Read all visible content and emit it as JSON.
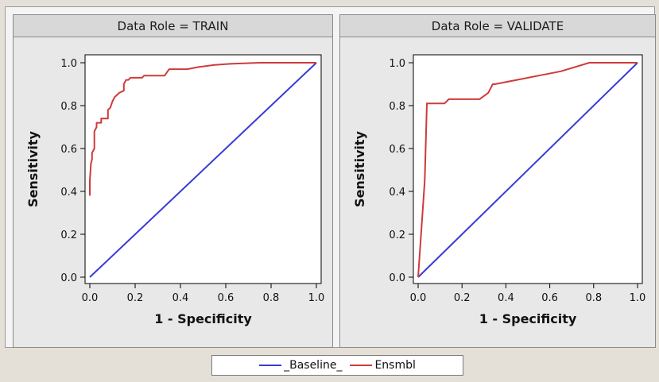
{
  "chart_data": [
    {
      "type": "line",
      "title": "Data Role = TRAIN",
      "xlabel": "1 - Specificity",
      "ylabel": "Sensitivity",
      "xlim": [
        0,
        1
      ],
      "ylim": [
        0,
        1
      ],
      "xticks": [
        "0.0",
        "0.2",
        "0.4",
        "0.6",
        "0.8",
        "1.0"
      ],
      "yticks": [
        "0.0",
        "0.2",
        "0.4",
        "0.6",
        "0.8",
        "1.0"
      ],
      "grid": false,
      "series": [
        {
          "name": "_Baseline_",
          "color": "#3a3ad6",
          "x": [
            0,
            1
          ],
          "y": [
            0,
            1
          ]
        },
        {
          "name": "Ensmbl",
          "color": "#d03a3a",
          "x": [
            0,
            0,
            0.005,
            0.01,
            0.01,
            0.02,
            0.02,
            0.03,
            0.03,
            0.05,
            0.05,
            0.08,
            0.08,
            0.09,
            0.1,
            0.11,
            0.12,
            0.13,
            0.15,
            0.15,
            0.16,
            0.17,
            0.18,
            0.2,
            0.23,
            0.24,
            0.33,
            0.35,
            0.43,
            0.48,
            0.55,
            0.62,
            0.75,
            0.85,
            1.0
          ],
          "y": [
            0.38,
            0.45,
            0.53,
            0.55,
            0.58,
            0.6,
            0.68,
            0.7,
            0.72,
            0.72,
            0.74,
            0.74,
            0.78,
            0.79,
            0.82,
            0.84,
            0.85,
            0.86,
            0.87,
            0.9,
            0.92,
            0.92,
            0.93,
            0.93,
            0.93,
            0.94,
            0.94,
            0.97,
            0.97,
            0.98,
            0.99,
            0.995,
            1.0,
            1.0,
            1.0
          ]
        }
      ]
    },
    {
      "type": "line",
      "title": "Data Role = VALIDATE",
      "xlabel": "1 - Specificity",
      "ylabel": "Sensitivity",
      "xlim": [
        0,
        1
      ],
      "ylim": [
        0,
        1
      ],
      "xticks": [
        "0.0",
        "0.2",
        "0.4",
        "0.6",
        "0.8",
        "1.0"
      ],
      "yticks": [
        "0.0",
        "0.2",
        "0.4",
        "0.6",
        "0.8",
        "1.0"
      ],
      "grid": false,
      "series": [
        {
          "name": "_Baseline_",
          "color": "#3a3ad6",
          "x": [
            0,
            1
          ],
          "y": [
            0,
            1
          ]
        },
        {
          "name": "Ensmbl",
          "color": "#d03a3a",
          "x": [
            0,
            0.03,
            0.04,
            0.04,
            0.12,
            0.14,
            0.28,
            0.32,
            0.34,
            0.35,
            0.45,
            0.55,
            0.65,
            0.78,
            1.0
          ],
          "y": [
            0,
            0.45,
            0.81,
            0.81,
            0.81,
            0.83,
            0.83,
            0.86,
            0.9,
            0.9,
            0.92,
            0.94,
            0.96,
            1.0,
            1.0
          ]
        }
      ]
    }
  ],
  "legend": {
    "items": [
      {
        "label": "_Baseline_",
        "color": "#3a3ad6"
      },
      {
        "label": "Ensmbl",
        "color": "#d03a3a"
      }
    ]
  }
}
